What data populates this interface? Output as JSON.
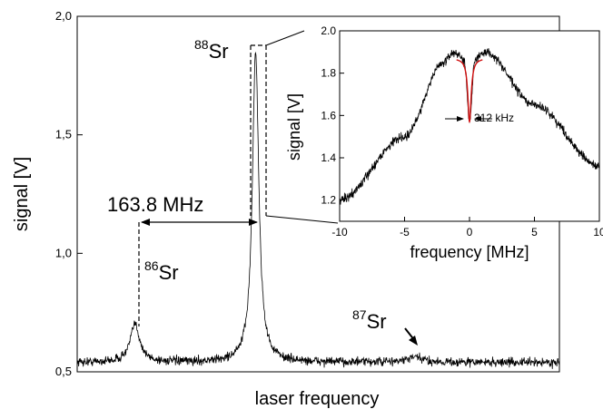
{
  "chart_data": [
    {
      "type": "line",
      "xlabel": "laser frequency",
      "ylabel": "signal [V]",
      "ylim": [
        0.5,
        2.0
      ],
      "yticks": [
        {
          "value": 0.5,
          "label": "0,5"
        },
        {
          "value": 1.0,
          "label": "1,0"
        },
        {
          "value": 1.5,
          "label": "1,5"
        },
        {
          "value": 2.0,
          "label": "2,0"
        }
      ],
      "grid": false,
      "series": [
        {
          "color": "#000000",
          "peaks": [
            {
              "position": 0.12,
              "amplitude": 0.16,
              "width": 0.012
            },
            {
              "position": 0.37,
              "amplitude": 1.31,
              "width": 0.008
            },
            {
              "position": 0.7,
              "amplitude": 0.02,
              "width": 0.02
            }
          ],
          "baseline": 0.54,
          "noise": 0.018
        }
      ],
      "annotations": [
        {
          "mass": "86",
          "element": "Sr"
        },
        {
          "mass": "88",
          "element": "Sr"
        },
        {
          "mass": "87",
          "element": "Sr"
        },
        {
          "text": "163.8 MHz"
        }
      ]
    },
    {
      "type": "line",
      "xlabel": "frequency [MHz]",
      "ylabel": "signal [V]",
      "xlim": [
        -10,
        10
      ],
      "ylim": [
        1.1,
        2.0
      ],
      "xticks": [
        {
          "value": -10,
          "label": "-10"
        },
        {
          "value": -5,
          "label": "-5"
        },
        {
          "value": 0,
          "label": "0"
        },
        {
          "value": 5,
          "label": "5"
        },
        {
          "value": 10,
          "label": "10"
        }
      ],
      "yticks": [
        {
          "value": 1.2,
          "label": "1.2"
        },
        {
          "value": 1.4,
          "label": "1.4"
        },
        {
          "value": 1.6,
          "label": "1.6"
        },
        {
          "value": 1.8,
          "label": "1.8"
        },
        {
          "value": 2.0,
          "label": "2.0"
        }
      ],
      "grid": false,
      "series": [
        {
          "color": "#000000",
          "points": [
            {
              "x": -10,
              "y": 1.2
            },
            {
              "x": -5,
              "y": 1.5
            },
            {
              "x": -2,
              "y": 1.85
            },
            {
              "x": -1.2,
              "y": 1.9
            },
            {
              "x": -0.4,
              "y": 1.86
            },
            {
              "x": 0,
              "y": 1.58
            },
            {
              "x": 0.4,
              "y": 1.86
            },
            {
              "x": 1.2,
              "y": 1.9
            },
            {
              "x": 5,
              "y": 1.65
            },
            {
              "x": 10,
              "y": 1.36
            }
          ],
          "noise": 0.02
        },
        {
          "color": "#d01010",
          "fit": {
            "center": 0,
            "depth": 0.3,
            "width": 0.156,
            "baseline": 1.87,
            "range": [
              -1.0,
              1.0
            ]
          }
        }
      ],
      "annotations": [
        {
          "text": "312 kHz"
        }
      ]
    }
  ]
}
